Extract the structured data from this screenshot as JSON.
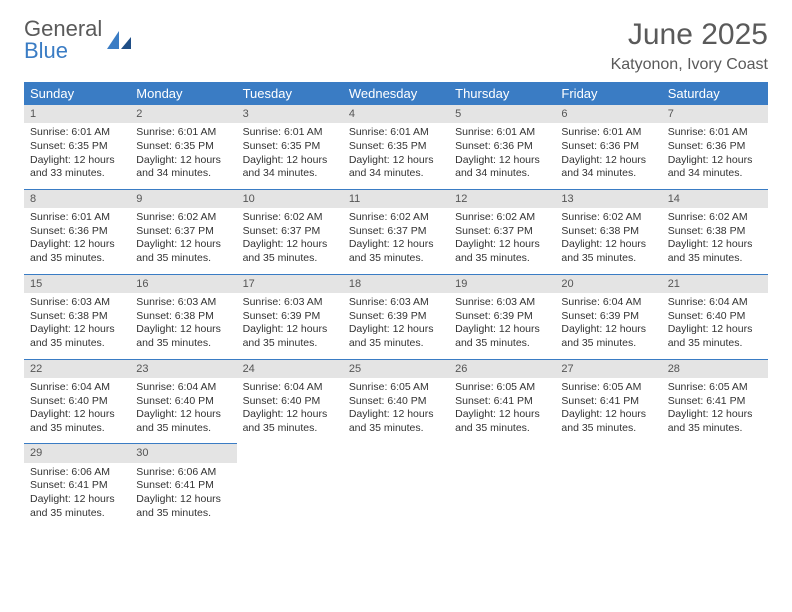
{
  "brand": {
    "word1": "General",
    "word2": "Blue"
  },
  "title": "June 2025",
  "location": "Katyonon, Ivory Coast",
  "colors": {
    "header_bg": "#3a7cc4",
    "header_text": "#ffffff",
    "daynum_bg": "#e4e4e4",
    "text": "#333333",
    "title_color": "#5a5a5a",
    "page_bg": "#ffffff",
    "rule": "#3a7cc4"
  },
  "typography": {
    "title_fontsize": 30,
    "location_fontsize": 16,
    "header_fontsize": 13,
    "body_fontsize": 10.5,
    "font_family": "Arial"
  },
  "dayHeaders": [
    "Sunday",
    "Monday",
    "Tuesday",
    "Wednesday",
    "Thursday",
    "Friday",
    "Saturday"
  ],
  "weeks": [
    [
      {
        "n": "1",
        "sr": "Sunrise: 6:01 AM",
        "ss": "Sunset: 6:35 PM",
        "dl": "Daylight: 12 hours and 33 minutes."
      },
      {
        "n": "2",
        "sr": "Sunrise: 6:01 AM",
        "ss": "Sunset: 6:35 PM",
        "dl": "Daylight: 12 hours and 34 minutes."
      },
      {
        "n": "3",
        "sr": "Sunrise: 6:01 AM",
        "ss": "Sunset: 6:35 PM",
        "dl": "Daylight: 12 hours and 34 minutes."
      },
      {
        "n": "4",
        "sr": "Sunrise: 6:01 AM",
        "ss": "Sunset: 6:35 PM",
        "dl": "Daylight: 12 hours and 34 minutes."
      },
      {
        "n": "5",
        "sr": "Sunrise: 6:01 AM",
        "ss": "Sunset: 6:36 PM",
        "dl": "Daylight: 12 hours and 34 minutes."
      },
      {
        "n": "6",
        "sr": "Sunrise: 6:01 AM",
        "ss": "Sunset: 6:36 PM",
        "dl": "Daylight: 12 hours and 34 minutes."
      },
      {
        "n": "7",
        "sr": "Sunrise: 6:01 AM",
        "ss": "Sunset: 6:36 PM",
        "dl": "Daylight: 12 hours and 34 minutes."
      }
    ],
    [
      {
        "n": "8",
        "sr": "Sunrise: 6:01 AM",
        "ss": "Sunset: 6:36 PM",
        "dl": "Daylight: 12 hours and 35 minutes."
      },
      {
        "n": "9",
        "sr": "Sunrise: 6:02 AM",
        "ss": "Sunset: 6:37 PM",
        "dl": "Daylight: 12 hours and 35 minutes."
      },
      {
        "n": "10",
        "sr": "Sunrise: 6:02 AM",
        "ss": "Sunset: 6:37 PM",
        "dl": "Daylight: 12 hours and 35 minutes."
      },
      {
        "n": "11",
        "sr": "Sunrise: 6:02 AM",
        "ss": "Sunset: 6:37 PM",
        "dl": "Daylight: 12 hours and 35 minutes."
      },
      {
        "n": "12",
        "sr": "Sunrise: 6:02 AM",
        "ss": "Sunset: 6:37 PM",
        "dl": "Daylight: 12 hours and 35 minutes."
      },
      {
        "n": "13",
        "sr": "Sunrise: 6:02 AM",
        "ss": "Sunset: 6:38 PM",
        "dl": "Daylight: 12 hours and 35 minutes."
      },
      {
        "n": "14",
        "sr": "Sunrise: 6:02 AM",
        "ss": "Sunset: 6:38 PM",
        "dl": "Daylight: 12 hours and 35 minutes."
      }
    ],
    [
      {
        "n": "15",
        "sr": "Sunrise: 6:03 AM",
        "ss": "Sunset: 6:38 PM",
        "dl": "Daylight: 12 hours and 35 minutes."
      },
      {
        "n": "16",
        "sr": "Sunrise: 6:03 AM",
        "ss": "Sunset: 6:38 PM",
        "dl": "Daylight: 12 hours and 35 minutes."
      },
      {
        "n": "17",
        "sr": "Sunrise: 6:03 AM",
        "ss": "Sunset: 6:39 PM",
        "dl": "Daylight: 12 hours and 35 minutes."
      },
      {
        "n": "18",
        "sr": "Sunrise: 6:03 AM",
        "ss": "Sunset: 6:39 PM",
        "dl": "Daylight: 12 hours and 35 minutes."
      },
      {
        "n": "19",
        "sr": "Sunrise: 6:03 AM",
        "ss": "Sunset: 6:39 PM",
        "dl": "Daylight: 12 hours and 35 minutes."
      },
      {
        "n": "20",
        "sr": "Sunrise: 6:04 AM",
        "ss": "Sunset: 6:39 PM",
        "dl": "Daylight: 12 hours and 35 minutes."
      },
      {
        "n": "21",
        "sr": "Sunrise: 6:04 AM",
        "ss": "Sunset: 6:40 PM",
        "dl": "Daylight: 12 hours and 35 minutes."
      }
    ],
    [
      {
        "n": "22",
        "sr": "Sunrise: 6:04 AM",
        "ss": "Sunset: 6:40 PM",
        "dl": "Daylight: 12 hours and 35 minutes."
      },
      {
        "n": "23",
        "sr": "Sunrise: 6:04 AM",
        "ss": "Sunset: 6:40 PM",
        "dl": "Daylight: 12 hours and 35 minutes."
      },
      {
        "n": "24",
        "sr": "Sunrise: 6:04 AM",
        "ss": "Sunset: 6:40 PM",
        "dl": "Daylight: 12 hours and 35 minutes."
      },
      {
        "n": "25",
        "sr": "Sunrise: 6:05 AM",
        "ss": "Sunset: 6:40 PM",
        "dl": "Daylight: 12 hours and 35 minutes."
      },
      {
        "n": "26",
        "sr": "Sunrise: 6:05 AM",
        "ss": "Sunset: 6:41 PM",
        "dl": "Daylight: 12 hours and 35 minutes."
      },
      {
        "n": "27",
        "sr": "Sunrise: 6:05 AM",
        "ss": "Sunset: 6:41 PM",
        "dl": "Daylight: 12 hours and 35 minutes."
      },
      {
        "n": "28",
        "sr": "Sunrise: 6:05 AM",
        "ss": "Sunset: 6:41 PM",
        "dl": "Daylight: 12 hours and 35 minutes."
      }
    ],
    [
      {
        "n": "29",
        "sr": "Sunrise: 6:06 AM",
        "ss": "Sunset: 6:41 PM",
        "dl": "Daylight: 12 hours and 35 minutes."
      },
      {
        "n": "30",
        "sr": "Sunrise: 6:06 AM",
        "ss": "Sunset: 6:41 PM",
        "dl": "Daylight: 12 hours and 35 minutes."
      },
      null,
      null,
      null,
      null,
      null
    ]
  ]
}
